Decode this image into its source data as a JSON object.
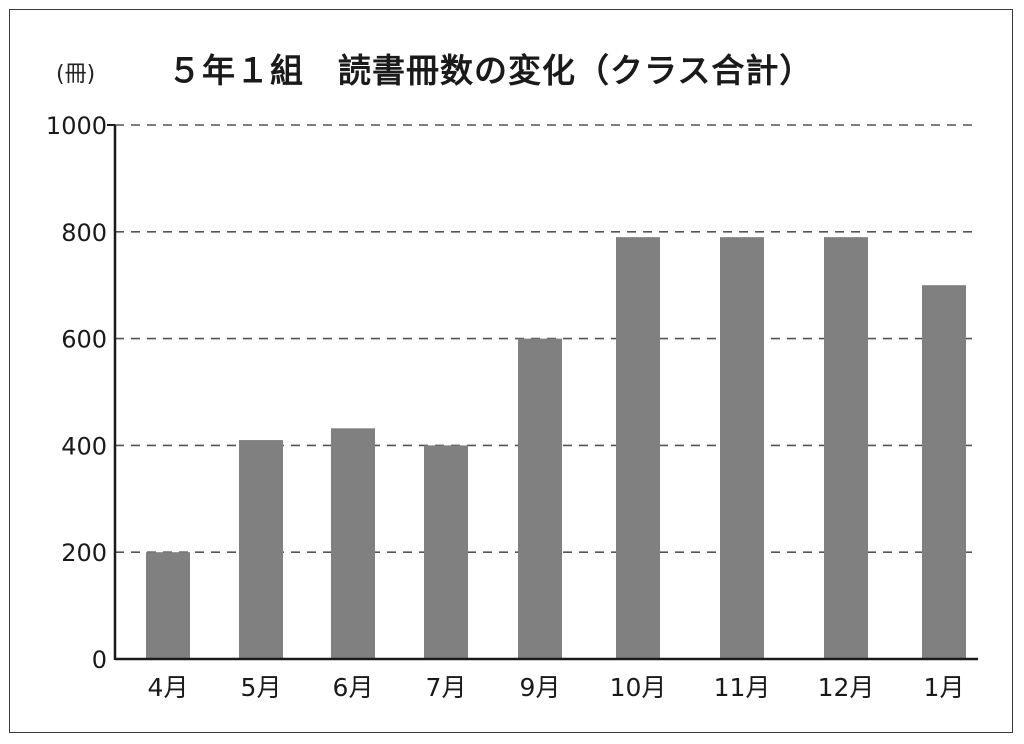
{
  "title": "５年１組　読書冊数の変化（クラス合計）",
  "unit_label": "(冊)",
  "colors": {
    "bar": "#808080",
    "axis": "#1a1a1a",
    "grid": "#555555",
    "text": "#1a1a1a"
  },
  "chart_data": {
    "type": "bar",
    "title": "５年１組　読書冊数の変化（クラス合計）",
    "ylabel": "(冊)",
    "xlabel": "",
    "categories": [
      "4月",
      "5月",
      "6月",
      "7月",
      "9月",
      "10月",
      "11月",
      "12月",
      "1月"
    ],
    "values": [
      200,
      410,
      432,
      400,
      600,
      790,
      790,
      790,
      700
    ],
    "ylim": [
      0,
      1000
    ],
    "yticks": [
      0,
      200,
      400,
      600,
      800,
      1000
    ],
    "grid": "horizontal dashed",
    "legend": "none"
  }
}
